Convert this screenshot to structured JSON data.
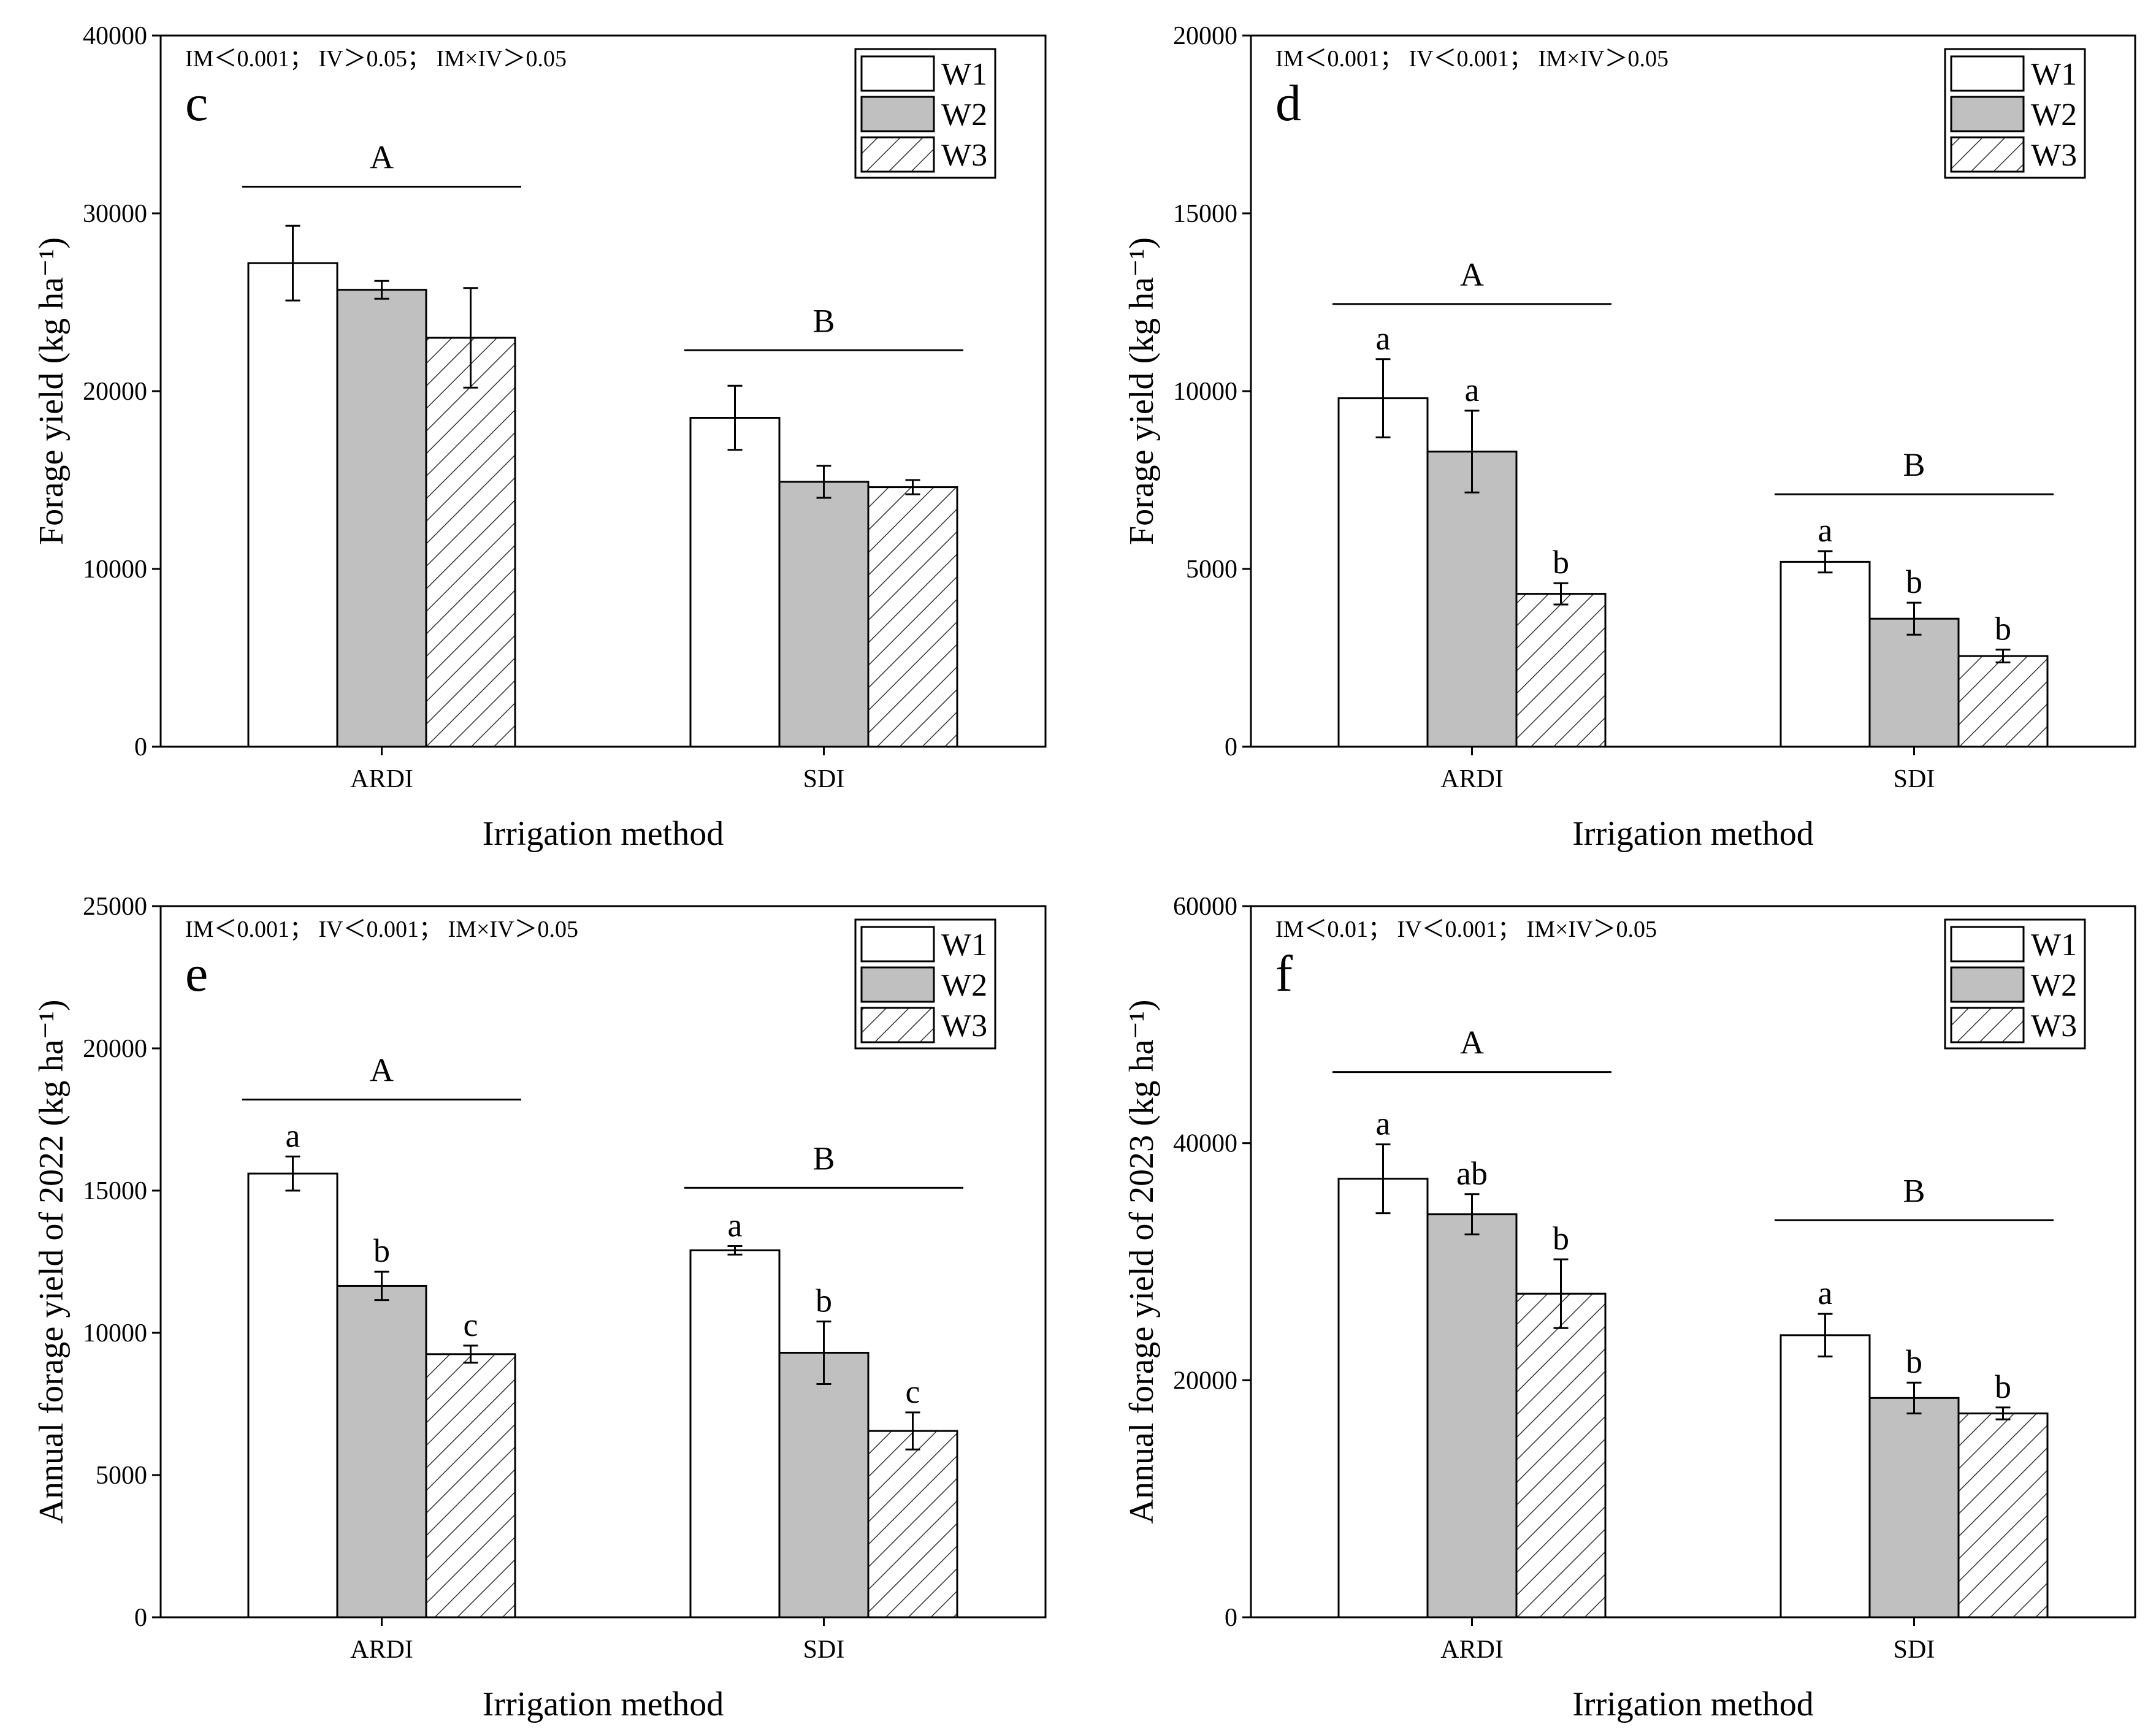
{
  "chart_data": [
    {
      "type": "bar",
      "panel_label": "c",
      "stats_text": "IM＜0.001； IV＞0.05； IM×IV＞0.05",
      "categories": [
        "ARDI",
        "SDI"
      ],
      "xlabel": "Irrigation method",
      "ylabel": "Forage yield (kg ha⁻¹)",
      "ylim": [
        0,
        40000
      ],
      "yticks": [
        0,
        10000,
        20000,
        30000,
        40000
      ],
      "legend": [
        "W1",
        "W2",
        "W3"
      ],
      "legend_position": "top-right",
      "series": [
        {
          "name": "W1",
          "values": [
            27200,
            18500
          ],
          "errors": [
            2100,
            1800
          ],
          "letters": [
            "",
            ""
          ]
        },
        {
          "name": "W2",
          "values": [
            25700,
            14900
          ],
          "errors": [
            500,
            900
          ],
          "letters": [
            "",
            ""
          ]
        },
        {
          "name": "W3",
          "values": [
            23000,
            14600
          ],
          "errors": [
            2800,
            400
          ],
          "letters": [
            "",
            ""
          ]
        }
      ],
      "group_labels": [
        "A",
        "B"
      ],
      "group_line_values": [
        31500,
        22300
      ]
    },
    {
      "type": "bar",
      "panel_label": "d",
      "stats_text": "IM＜0.001； IV＜0.001； IM×IV＞0.05",
      "categories": [
        "ARDI",
        "SDI"
      ],
      "xlabel": "Irrigation method",
      "ylabel": "Forage yield (kg ha⁻¹)",
      "ylim": [
        0,
        20000
      ],
      "yticks": [
        0,
        5000,
        10000,
        15000,
        20000
      ],
      "legend": [
        "W1",
        "W2",
        "W3"
      ],
      "legend_position": "top-right",
      "series": [
        {
          "name": "W1",
          "values": [
            9800,
            5200
          ],
          "errors": [
            1100,
            300
          ],
          "letters": [
            "a",
            "a"
          ]
        },
        {
          "name": "W2",
          "values": [
            8300,
            3600
          ],
          "errors": [
            1150,
            450
          ],
          "letters": [
            "a",
            "b"
          ]
        },
        {
          "name": "W3",
          "values": [
            4300,
            2550
          ],
          "errors": [
            300,
            180
          ],
          "letters": [
            "b",
            "b"
          ]
        }
      ],
      "group_labels": [
        "A",
        "B"
      ],
      "group_line_values": [
        12450,
        7100
      ]
    },
    {
      "type": "bar",
      "panel_label": "e",
      "stats_text": "IM＜0.001； IV＜0.001； IM×IV＞0.05",
      "categories": [
        "ARDI",
        "SDI"
      ],
      "xlabel": "Irrigation method",
      "ylabel": "Annual forage yield of 2022 (kg ha⁻¹)",
      "ylim": [
        0,
        25000
      ],
      "yticks": [
        0,
        5000,
        10000,
        15000,
        20000,
        25000
      ],
      "legend": [
        "W1",
        "W2",
        "W3"
      ],
      "legend_position": "top-right",
      "series": [
        {
          "name": "W1",
          "values": [
            15600,
            12900
          ],
          "errors": [
            600,
            150
          ],
          "letters": [
            "a",
            "a"
          ]
        },
        {
          "name": "W2",
          "values": [
            11650,
            9300
          ],
          "errors": [
            500,
            1100
          ],
          "letters": [
            "b",
            "b"
          ]
        },
        {
          "name": "W3",
          "values": [
            9250,
            6550
          ],
          "errors": [
            300,
            650
          ],
          "letters": [
            "c",
            "c"
          ]
        }
      ],
      "group_labels": [
        "A",
        "B"
      ],
      "group_line_values": [
        18200,
        15100
      ]
    },
    {
      "type": "bar",
      "panel_label": "f",
      "stats_text": "IM＜0.01； IV＜0.001； IM×IV＞0.05",
      "categories": [
        "ARDI",
        "SDI"
      ],
      "xlabel": "Irrigation method",
      "ylabel": "Annual forage yield of 2023 (kg ha⁻¹)",
      "ylim": [
        0,
        60000
      ],
      "yticks": [
        0,
        20000,
        40000,
        60000
      ],
      "legend": [
        "W1",
        "W2",
        "W3"
      ],
      "legend_position": "top-right",
      "series": [
        {
          "name": "W1",
          "values": [
            37000,
            23800
          ],
          "errors": [
            2900,
            1800
          ],
          "letters": [
            "a",
            "a"
          ]
        },
        {
          "name": "W2",
          "values": [
            34000,
            18500
          ],
          "errors": [
            1700,
            1300
          ],
          "letters": [
            "ab",
            "b"
          ]
        },
        {
          "name": "W3",
          "values": [
            27300,
            17200
          ],
          "errors": [
            2900,
            500
          ],
          "letters": [
            "b",
            "b"
          ]
        }
      ],
      "group_labels": [
        "A",
        "B"
      ],
      "group_line_values": [
        46000,
        33500
      ]
    }
  ],
  "colors": {
    "W1": "#ffffff",
    "W2": "#c0c0c0",
    "W3_hatch": "#333333",
    "stroke": "#000000"
  }
}
